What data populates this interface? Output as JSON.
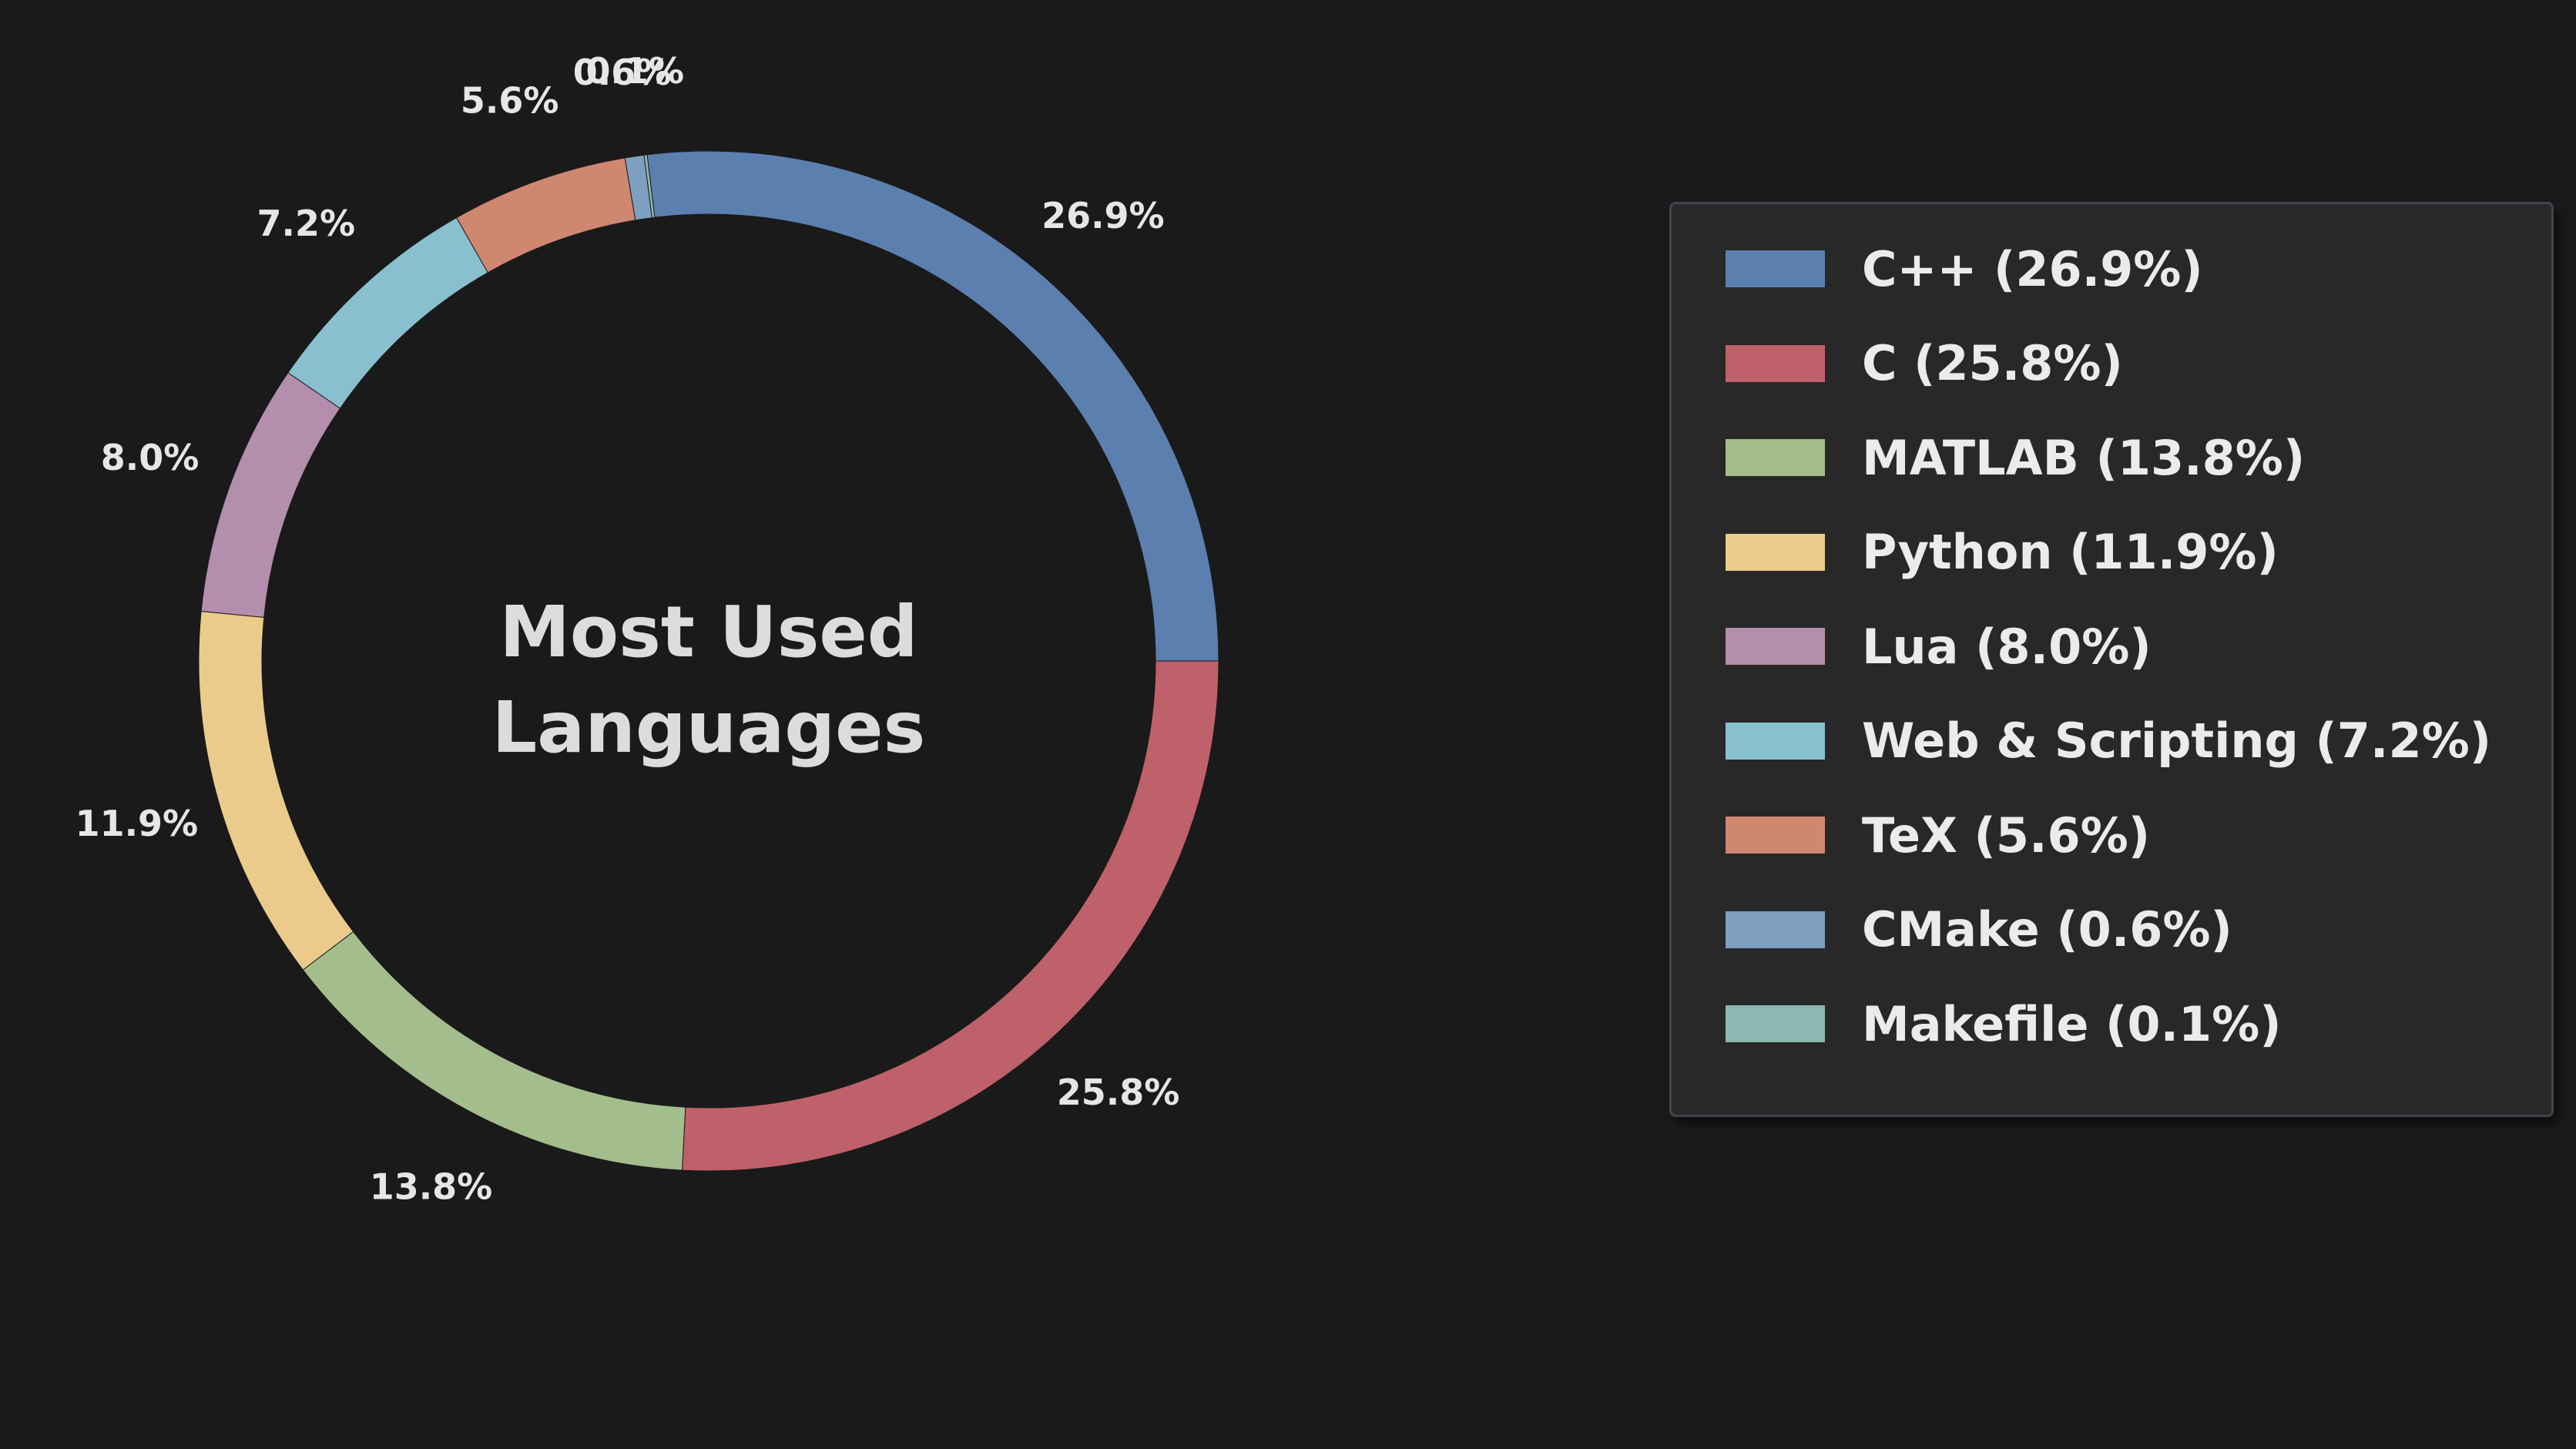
{
  "chart_data": {
    "type": "pie",
    "variant": "donut",
    "center_title": [
      "Most Used",
      "Languages"
    ],
    "slices": [
      {
        "name": "C++",
        "value": 26.9,
        "label": "26.9%",
        "legend": "C++ (26.9%)",
        "color": "#5b7fae"
      },
      {
        "name": "Makefile",
        "value": 0.1,
        "label": "0.1%",
        "legend": "Makefile (0.1%)",
        "color": "#8bb8b0"
      },
      {
        "name": "CMake",
        "value": 0.6,
        "label": "0.6%",
        "legend": "CMake (0.6%)",
        "color": "#7f9fc0"
      },
      {
        "name": "TeX",
        "value": 5.6,
        "label": "5.6%",
        "legend": "TeX (5.6%)",
        "color": "#d08770"
      },
      {
        "name": "Web & Scripting",
        "value": 7.2,
        "label": "7.2%",
        "legend": "Web & Scripting (7.2%)",
        "color": "#88c0d0"
      },
      {
        "name": "Lua",
        "value": 8.0,
        "label": "8.0%",
        "legend": "Lua (8.0%)",
        "color": "#b48ead"
      },
      {
        "name": "Python",
        "value": 11.9,
        "label": "11.9%",
        "legend": "Python (11.9%)",
        "color": "#ebcb8b"
      },
      {
        "name": "MATLAB",
        "value": 13.8,
        "label": "13.8%",
        "legend": "MATLAB (13.8%)",
        "color": "#a3be8c"
      },
      {
        "name": "C",
        "value": 25.8,
        "label": "25.8%",
        "legend": "C (25.8%)",
        "color": "#bf616a"
      }
    ],
    "legend_order": [
      "C++",
      "C",
      "MATLAB",
      "Python",
      "Lua",
      "Web & Scripting",
      "TeX",
      "CMake",
      "Makefile"
    ],
    "legend_position": "right"
  }
}
